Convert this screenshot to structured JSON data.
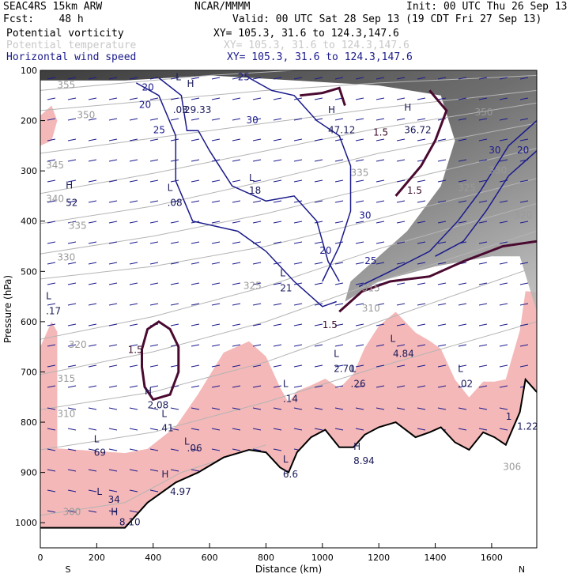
{
  "header": {
    "model": "SEAC4RS 15km ARW",
    "institution": "NCAR/MMMM",
    "init": "Init: 00 UTC Thu 26 Sep 13",
    "fcst": "Fcst:    48 h",
    "valid": "Valid: 00 UTC Sat 28 Sep 13 (19 CDT Fri 27 Sep 13)",
    "fields": [
      {
        "name": "Potential vorticity",
        "xy": "XY= 105.3, 31.6 to 124.3,147.6",
        "color": "#000000"
      },
      {
        "name": "Potential temperature",
        "xy": "XY= 105.3, 31.6 to 124.3,147.6",
        "color": "#c8c8c8"
      },
      {
        "name": "Horizontal wind speed",
        "xy": "XY= 105.3, 31.6 to 124.3,147.6",
        "color": "#1a1a8c"
      }
    ]
  },
  "chart_data": {
    "type": "cross-section",
    "xlabel": "Distance (km)",
    "ylabel": "Pressure (hPa)",
    "xlim": [
      0,
      1760
    ],
    "ylim": [
      1050,
      100
    ],
    "x_ticks": [
      0,
      200,
      400,
      600,
      800,
      1000,
      1200,
      1400,
      1600
    ],
    "y_ticks": [
      100,
      200,
      300,
      400,
      500,
      600,
      700,
      800,
      900,
      1000
    ],
    "x_end_labels": {
      "left": "S",
      "right": "N"
    },
    "colors": {
      "pv_shade": "#f4b8b8",
      "pv_contour": "#4a0a30",
      "theta": "#b4b4b4",
      "wind": "#1a1a8c",
      "terrain": "#000000"
    },
    "terrain": [
      [
        0,
        1010
      ],
      [
        300,
        1010
      ],
      [
        380,
        960
      ],
      [
        480,
        920
      ],
      [
        560,
        900
      ],
      [
        650,
        870
      ],
      [
        740,
        855
      ],
      [
        800,
        860
      ],
      [
        850,
        890
      ],
      [
        880,
        900
      ],
      [
        910,
        860
      ],
      [
        960,
        830
      ],
      [
        1010,
        815
      ],
      [
        1060,
        850
      ],
      [
        1110,
        850
      ],
      [
        1150,
        825
      ],
      [
        1200,
        810
      ],
      [
        1260,
        800
      ],
      [
        1330,
        830
      ],
      [
        1380,
        820
      ],
      [
        1420,
        810
      ],
      [
        1470,
        840
      ],
      [
        1520,
        855
      ],
      [
        1570,
        820
      ],
      [
        1610,
        830
      ],
      [
        1650,
        845
      ],
      [
        1700,
        780
      ],
      [
        1720,
        715
      ],
      [
        1760,
        740
      ]
    ],
    "theta_contours": [
      {
        "label": "355",
        "points": [
          [
            0,
            140
          ],
          [
            300,
            125
          ],
          [
            600,
            110
          ],
          [
            900,
            100
          ]
        ]
      },
      {
        "label": "350",
        "points": [
          [
            0,
            180
          ],
          [
            400,
            160
          ],
          [
            800,
            140
          ],
          [
            1200,
            125
          ],
          [
            1760,
            110
          ]
        ]
      },
      {
        "label": "345",
        "points": [
          [
            0,
            265
          ],
          [
            400,
            235
          ],
          [
            800,
            205
          ],
          [
            1200,
            175
          ],
          [
            1760,
            140
          ]
        ]
      },
      {
        "label": "340",
        "points": [
          [
            0,
            345
          ],
          [
            400,
            305
          ],
          [
            800,
            260
          ],
          [
            1200,
            215
          ],
          [
            1760,
            165
          ]
        ]
      },
      {
        "label": "335",
        "points": [
          [
            0,
            405
          ],
          [
            400,
            370
          ],
          [
            800,
            320
          ],
          [
            1200,
            265
          ],
          [
            1760,
            205
          ]
        ]
      },
      {
        "label": "330",
        "points": [
          [
            0,
            465
          ],
          [
            400,
            430
          ],
          [
            800,
            385
          ],
          [
            1200,
            330
          ],
          [
            1760,
            255
          ]
        ]
      },
      {
        "label": "325",
        "points": [
          [
            0,
            515
          ],
          [
            400,
            490
          ],
          [
            800,
            450
          ],
          [
            1200,
            395
          ],
          [
            1760,
            315
          ]
        ]
      },
      {
        "label": "320",
        "points": [
          [
            0,
            635
          ],
          [
            400,
            590
          ],
          [
            800,
            530
          ],
          [
            1200,
            455
          ],
          [
            1760,
            365
          ]
        ]
      },
      {
        "label": "315",
        "points": [
          [
            0,
            705
          ],
          [
            400,
            660
          ],
          [
            800,
            600
          ],
          [
            1200,
            520
          ],
          [
            1760,
            420
          ]
        ]
      },
      {
        "label": "310",
        "points": [
          [
            0,
            775
          ],
          [
            400,
            740
          ],
          [
            800,
            680
          ],
          [
            1200,
            600
          ],
          [
            1760,
            490
          ]
        ]
      },
      {
        "label": "305",
        "points": [
          [
            0,
            855
          ],
          [
            400,
            820
          ],
          [
            800,
            760
          ],
          [
            1200,
            690
          ],
          [
            1760,
            600
          ]
        ]
      },
      {
        "label": "300",
        "points": [
          [
            0,
            985
          ],
          [
            300,
            960
          ],
          [
            500,
            900
          ],
          [
            800,
            845
          ]
        ]
      }
    ],
    "theta_labels": [
      {
        "text": "355",
        "x": 60,
        "p": 135
      },
      {
        "text": "350",
        "x": 130,
        "p": 195
      },
      {
        "text": "345",
        "x": 20,
        "p": 295
      },
      {
        "text": "340",
        "x": 20,
        "p": 362
      },
      {
        "text": "335",
        "x": 100,
        "p": 415
      },
      {
        "text": "330",
        "x": 60,
        "p": 478
      },
      {
        "text": "325",
        "x": 720,
        "p": 535
      },
      {
        "text": "320",
        "x": 100,
        "p": 652
      },
      {
        "text": "315",
        "x": 60,
        "p": 720
      },
      {
        "text": "310",
        "x": 60,
        "p": 790
      },
      {
        "text": "300",
        "x": 80,
        "p": 985
      },
      {
        "text": "350",
        "x": 1540,
        "p": 190
      },
      {
        "text": "320",
        "x": 1680,
        "p": 395
      },
      {
        "text": "325",
        "x": 1480,
        "p": 340
      },
      {
        "text": "330",
        "x": 1590,
        "p": 305
      },
      {
        "text": "335",
        "x": 1100,
        "p": 310
      },
      {
        "text": "315",
        "x": 1140,
        "p": 540
      },
      {
        "text": "310",
        "x": 1140,
        "p": 580
      },
      {
        "text": "306",
        "x": 1640,
        "p": 895
      }
    ],
    "wind_contours": [
      {
        "label": "20",
        "points": [
          [
            340,
            125
          ],
          [
            420,
            150
          ],
          [
            480,
            230
          ],
          [
            480,
            320
          ],
          [
            540,
            400
          ],
          [
            700,
            420
          ],
          [
            800,
            460
          ],
          [
            900,
            520
          ],
          [
            1000,
            570
          ],
          [
            1050,
            560
          ]
        ]
      },
      {
        "label": "25",
        "points": [
          [
            420,
            115
          ],
          [
            500,
            150
          ],
          [
            520,
            220
          ],
          [
            560,
            220
          ],
          [
            600,
            260
          ],
          [
            680,
            330
          ],
          [
            800,
            360
          ],
          [
            900,
            350
          ],
          [
            980,
            400
          ],
          [
            1020,
            480
          ],
          [
            1060,
            520
          ]
        ]
      },
      {
        "label": "30",
        "points": [
          [
            740,
            115
          ],
          [
            820,
            140
          ],
          [
            900,
            150
          ],
          [
            980,
            200
          ],
          [
            1060,
            230
          ],
          [
            1100,
            290
          ],
          [
            1100,
            380
          ],
          [
            1060,
            450
          ],
          [
            1000,
            520
          ]
        ]
      },
      {
        "label": "30",
        "points": [
          [
            1760,
            200
          ],
          [
            1660,
            250
          ],
          [
            1560,
            340
          ],
          [
            1480,
            400
          ],
          [
            1380,
            460
          ],
          [
            1240,
            500
          ],
          [
            1130,
            530
          ]
        ]
      },
      {
        "label": "35",
        "points": [
          [
            1760,
            260
          ],
          [
            1660,
            310
          ],
          [
            1580,
            380
          ],
          [
            1500,
            440
          ],
          [
            1400,
            470
          ]
        ]
      }
    ],
    "wind_labels": [
      {
        "text": "20",
        "x": 350,
        "p": 175
      },
      {
        "text": "25",
        "x": 400,
        "p": 225
      },
      {
        "text": "30",
        "x": 730,
        "p": 205
      },
      {
        "text": "20",
        "x": 360,
        "p": 140
      },
      {
        "text": "25",
        "x": 700,
        "p": 120
      },
      {
        "text": "20",
        "x": 990,
        "p": 465
      },
      {
        "text": "25",
        "x": 1150,
        "p": 485
      },
      {
        "text": "30",
        "x": 1130,
        "p": 395
      },
      {
        "text": "30",
        "x": 1590,
        "p": 265
      },
      {
        "text": "20",
        "x": 1690,
        "p": 265
      }
    ],
    "pv_contours": [
      {
        "label": "1.5",
        "points": [
          [
            920,
            150
          ],
          [
            1000,
            145
          ],
          [
            1060,
            135
          ],
          [
            1080,
            170
          ]
        ]
      },
      {
        "label": "1.5",
        "points": [
          [
            1260,
            350
          ],
          [
            1350,
            290
          ],
          [
            1400,
            240
          ],
          [
            1440,
            180
          ],
          [
            1380,
            140
          ]
        ]
      },
      {
        "label": "1.5",
        "points": [
          [
            1060,
            580
          ],
          [
            1140,
            540
          ],
          [
            1240,
            520
          ],
          [
            1380,
            510
          ],
          [
            1500,
            480
          ],
          [
            1640,
            450
          ],
          [
            1760,
            440
          ]
        ]
      },
      {
        "label": "1.5",
        "points": [
          [
            360,
            655
          ],
          [
            380,
            615
          ],
          [
            420,
            600
          ],
          [
            460,
            615
          ],
          [
            490,
            650
          ],
          [
            490,
            700
          ],
          [
            460,
            745
          ],
          [
            400,
            755
          ],
          [
            370,
            730
          ],
          [
            360,
            690
          ],
          [
            360,
            655
          ]
        ]
      }
    ],
    "pv_labels": [
      {
        "text": "1.5",
        "x": 310,
        "p": 662
      },
      {
        "text": "1.5",
        "x": 1000,
        "p": 613
      },
      {
        "text": "1.5",
        "x": 1300,
        "p": 345
      },
      {
        "text": "1.5",
        "x": 1180,
        "p": 230
      }
    ],
    "hl_labels": [
      {
        "text": "L",
        "x": 480,
        "p": 120
      },
      {
        "text": ".03",
        "x": 470,
        "p": 185
      },
      {
        "text": "H",
        "x": 520,
        "p": 133
      },
      {
        "text": "29.33",
        "x": 510,
        "p": 185
      },
      {
        "text": "H",
        "x": 90,
        "p": 335
      },
      {
        "text": "52",
        "x": 90,
        "p": 370
      },
      {
        "text": "L",
        "x": 450,
        "p": 340
      },
      {
        "text": ".08",
        "x": 450,
        "p": 370
      },
      {
        "text": "L",
        "x": 740,
        "p": 320
      },
      {
        "text": "18",
        "x": 740,
        "p": 345
      },
      {
        "text": "H",
        "x": 1020,
        "p": 185
      },
      {
        "text": "47.12",
        "x": 1020,
        "p": 225
      },
      {
        "text": "H",
        "x": 1290,
        "p": 180
      },
      {
        "text": "36.72",
        "x": 1290,
        "p": 225
      },
      {
        "text": "L",
        "x": 850,
        "p": 510
      },
      {
        "text": "21",
        "x": 850,
        "p": 540
      },
      {
        "text": "L",
        "x": 20,
        "p": 555
      },
      {
        "text": ".17",
        "x": 20,
        "p": 585
      },
      {
        "text": "L",
        "x": 1040,
        "p": 670
      },
      {
        "text": "2.70",
        "x": 1040,
        "p": 700
      },
      {
        "text": "L",
        "x": 1240,
        "p": 640
      },
      {
        "text": "4.84",
        "x": 1250,
        "p": 670
      },
      {
        "text": "L",
        "x": 1100,
        "p": 700
      },
      {
        "text": ".26",
        "x": 1100,
        "p": 730
      },
      {
        "text": "L",
        "x": 860,
        "p": 730
      },
      {
        "text": ".14",
        "x": 860,
        "p": 760
      },
      {
        "text": "L",
        "x": 1480,
        "p": 700
      },
      {
        "text": ".02",
        "x": 1480,
        "p": 730
      },
      {
        "text": "H",
        "x": 370,
        "p": 745
      },
      {
        "text": "2.08",
        "x": 380,
        "p": 772
      },
      {
        "text": "L",
        "x": 430,
        "p": 790
      },
      {
        "text": "41",
        "x": 430,
        "p": 818
      },
      {
        "text": "L",
        "x": 510,
        "p": 845
      },
      {
        "text": ".06",
        "x": 520,
        "p": 858
      },
      {
        "text": "L",
        "x": 190,
        "p": 840
      },
      {
        "text": "69",
        "x": 190,
        "p": 867
      },
      {
        "text": "H",
        "x": 1110,
        "p": 855
      },
      {
        "text": "8.94",
        "x": 1110,
        "p": 883
      },
      {
        "text": "L",
        "x": 860,
        "p": 880
      },
      {
        "text": "6.6",
        "x": 860,
        "p": 910
      },
      {
        "text": "H",
        "x": 430,
        "p": 910
      },
      {
        "text": "4.97",
        "x": 460,
        "p": 945
      },
      {
        "text": "L",
        "x": 200,
        "p": 945
      },
      {
        "text": "34",
        "x": 240,
        "p": 960
      },
      {
        "text": "H",
        "x": 250,
        "p": 985
      },
      {
        "text": "8.10",
        "x": 280,
        "p": 1005
      },
      {
        "text": "1.22",
        "x": 1690,
        "p": 815
      },
      {
        "text": "1",
        "x": 1650,
        "p": 795
      }
    ]
  }
}
